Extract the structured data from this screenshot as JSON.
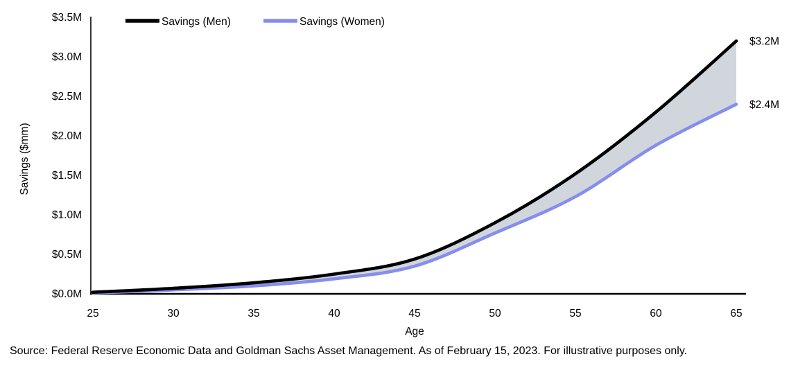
{
  "chart_data": {
    "type": "line",
    "title": "",
    "xlabel": "Age",
    "ylabel": "Savings ($mm)",
    "xlim": [
      25,
      65
    ],
    "ylim": [
      0,
      3.5
    ],
    "grid": false,
    "legend_position": "top-left-horizontal",
    "x": [
      25,
      30,
      35,
      40,
      45,
      50,
      55,
      60,
      65
    ],
    "x_ticks": [
      {
        "value": 25,
        "label": "25"
      },
      {
        "value": 30,
        "label": "30"
      },
      {
        "value": 35,
        "label": "35"
      },
      {
        "value": 40,
        "label": "40"
      },
      {
        "value": 45,
        "label": "45"
      },
      {
        "value": 50,
        "label": "50"
      },
      {
        "value": 55,
        "label": "55"
      },
      {
        "value": 60,
        "label": "60"
      },
      {
        "value": 65,
        "label": "65"
      }
    ],
    "y_ticks": [
      {
        "value": 0.0,
        "label": "$0.0M"
      },
      {
        "value": 0.5,
        "label": "$0.5M"
      },
      {
        "value": 1.0,
        "label": "$1.0M"
      },
      {
        "value": 1.5,
        "label": "$1.5M"
      },
      {
        "value": 2.0,
        "label": "$2.0M"
      },
      {
        "value": 2.5,
        "label": "$2.5M"
      },
      {
        "value": 3.0,
        "label": "$3.0M"
      },
      {
        "value": 3.5,
        "label": "$3.5M"
      }
    ],
    "series": [
      {
        "name": "Savings (Men)",
        "color": "#000000",
        "end_label": "$3.2M",
        "values": [
          0.02,
          0.07,
          0.14,
          0.25,
          0.44,
          0.9,
          1.52,
          2.3,
          3.2
        ]
      },
      {
        "name": "Savings (Women)",
        "color": "#878dec",
        "end_label": "$2.4M",
        "values": [
          0.01,
          0.05,
          0.1,
          0.19,
          0.35,
          0.77,
          1.23,
          1.88,
          2.4
        ]
      }
    ],
    "fill_between": {
      "between": [
        "Savings (Men)",
        "Savings (Women)"
      ],
      "color": "#d0d6dc"
    }
  },
  "source_note": "Source: Federal Reserve Economic Data and Goldman Sachs Asset Management. As of February 15, 2023. For illustrative purposes only."
}
